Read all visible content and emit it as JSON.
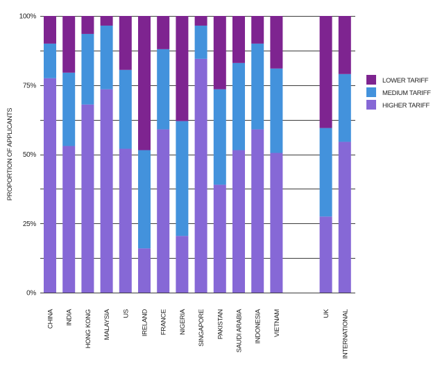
{
  "chart_data": {
    "type": "bar",
    "stacked": true,
    "title": "",
    "xlabel": "",
    "ylabel": "PROPORTION OF APPLICANTS",
    "ylim": [
      0,
      100
    ],
    "yticks": [
      0,
      25,
      50,
      75,
      100
    ],
    "ytick_labels": [
      "0%",
      "25%",
      "50%",
      "75%",
      "100%"
    ],
    "grid": true,
    "legend_position": "right",
    "categories": [
      "CHINA",
      "INDIA",
      "HONG KONG",
      "MALAYSIA",
      "US",
      "IRELAND",
      "FRANCE",
      "NIGERIA",
      "SINGAPORE",
      "PAKISTAN",
      "SAUDI ARABIA",
      "INDONESIA",
      "VIETNAM",
      "UK",
      "INTERNATIONAL"
    ],
    "gap_after_index": 12,
    "series": [
      {
        "name": "HIGHER TARIFF",
        "color": "#8668d6",
        "values": [
          77.5,
          53,
          68,
          73.5,
          52,
          16,
          59,
          20.5,
          84.5,
          39,
          51.5,
          59,
          50.5,
          27.5,
          54.5
        ]
      },
      {
        "name": "MEDIUM TARIFF",
        "color": "#4392dc",
        "values": [
          12.5,
          26.5,
          25.5,
          23,
          28.5,
          35.5,
          29,
          41.5,
          12,
          34.5,
          31.5,
          31,
          30.5,
          32,
          24.5
        ]
      },
      {
        "name": "LOWER TARIFF",
        "color": "#7e2490",
        "values": [
          10,
          20.5,
          6.5,
          3.5,
          19.5,
          48.5,
          12,
          38,
          3.5,
          26.5,
          17,
          10,
          19,
          40.5,
          21
        ]
      }
    ],
    "legend_order": [
      "LOWER TARIFF",
      "MEDIUM TARIFF",
      "HIGHER TARIFF"
    ]
  }
}
